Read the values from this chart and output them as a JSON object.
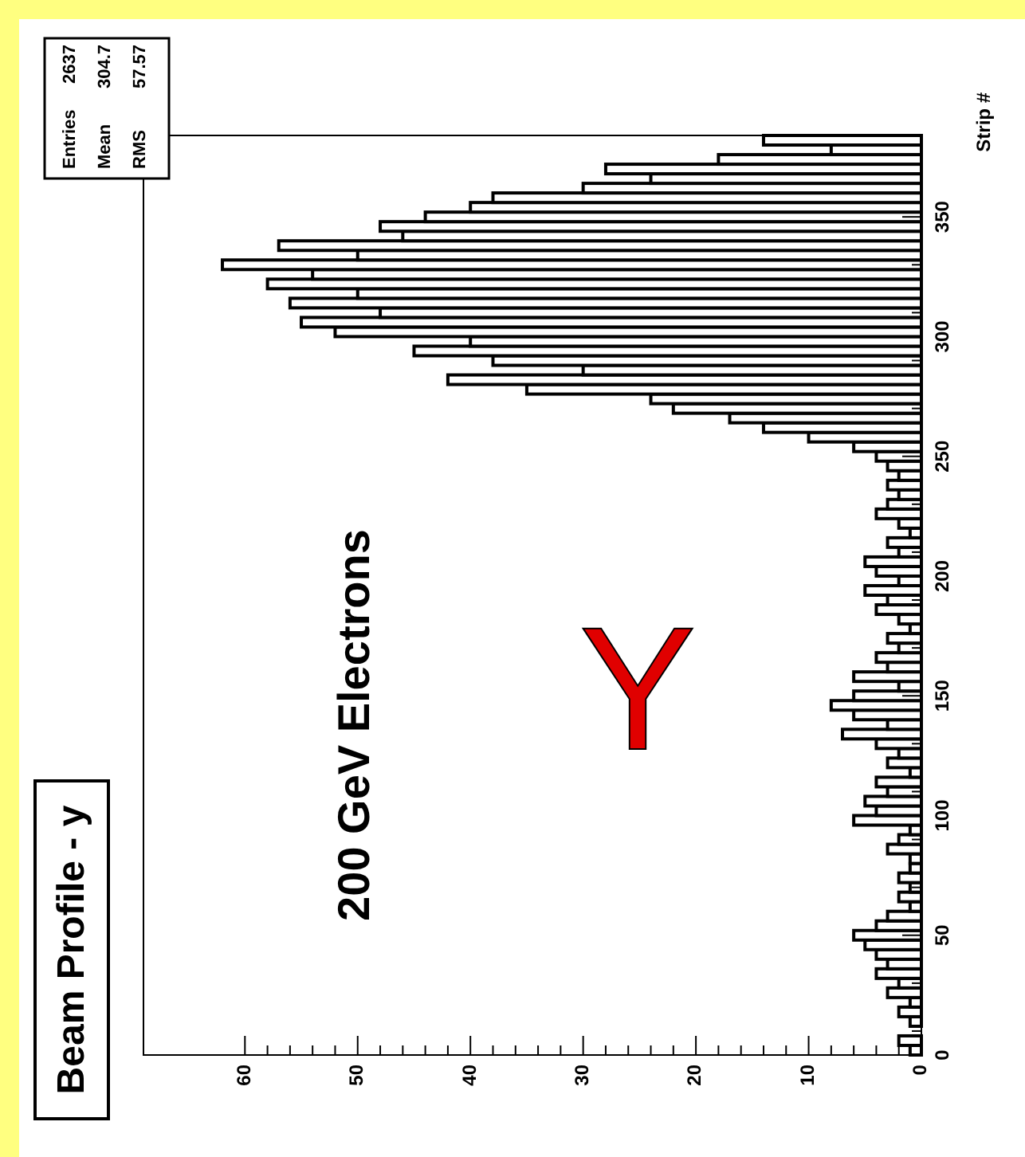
{
  "chart_data": {
    "type": "histogram",
    "orientation": "horizontal",
    "title": "Beam Profile - y",
    "ylabel": "Strip #",
    "annotations": [
      "200 GeV Electrons",
      "Y",
      "Entries",
      "2637",
      "Mean",
      "304.7",
      "RMS",
      "57.57"
    ],
    "bins": [
      0,
      4,
      8,
      12,
      16,
      20,
      24,
      28,
      32,
      36,
      40,
      44,
      48,
      52,
      56,
      60,
      64,
      68,
      72,
      76,
      80,
      84,
      88,
      92,
      96,
      100,
      104,
      108,
      112,
      116,
      120,
      124,
      128,
      132,
      136,
      140,
      144,
      148,
      152,
      156,
      160,
      164,
      168,
      172,
      176,
      180,
      184,
      188,
      192,
      196,
      200,
      204,
      208,
      212,
      216,
      220,
      224,
      228,
      232,
      236,
      240,
      244,
      248,
      252,
      256,
      260,
      264,
      268,
      272,
      276,
      280,
      284,
      288,
      292,
      296,
      300,
      304,
      308,
      312,
      316,
      320,
      324,
      328,
      332,
      336,
      340,
      344,
      348,
      352,
      356,
      360,
      364,
      368,
      372,
      376,
      380,
      384
    ],
    "values": [
      1,
      2,
      0,
      1,
      2,
      1,
      3,
      2,
      4,
      3,
      4,
      5,
      6,
      4,
      3,
      1,
      2,
      1,
      2,
      1,
      1,
      3,
      2,
      1,
      6,
      4,
      5,
      3,
      4,
      1,
      3,
      2,
      4,
      7,
      3,
      6,
      8,
      6,
      2,
      6,
      3,
      4,
      2,
      3,
      1,
      2,
      4,
      3,
      5,
      2,
      4,
      5,
      2,
      3,
      1,
      2,
      4,
      3,
      2,
      3,
      2,
      3,
      4,
      6,
      10,
      14,
      17,
      22,
      24,
      35,
      42,
      30,
      38,
      45,
      40,
      52,
      55,
      48,
      56,
      50,
      58,
      54,
      62,
      50,
      57,
      46,
      48,
      44,
      40,
      38,
      30,
      24,
      28,
      18,
      8,
      14
    ],
    "color": "#000000",
    "xlim": [
      69,
      0
    ],
    "xticks": [
      0,
      10,
      20,
      30,
      40,
      50,
      60
    ],
    "ylim": [
      0,
      384
    ],
    "yticks": [
      0,
      50,
      100,
      150,
      200,
      250,
      300,
      350
    ],
    "grid": false
  }
}
